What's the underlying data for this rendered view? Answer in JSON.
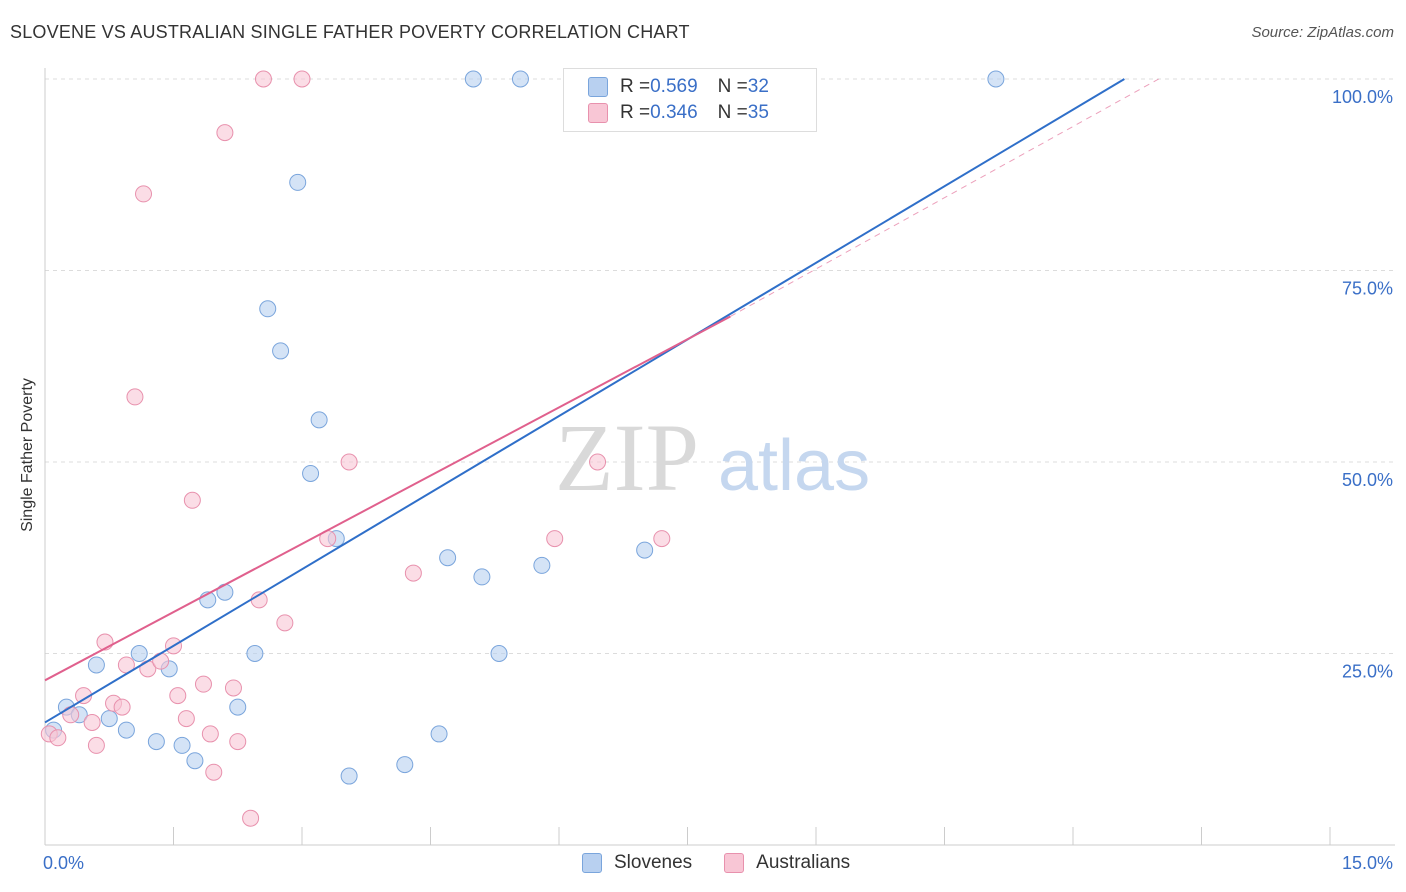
{
  "title": "SLOVENE VS AUSTRALIAN SINGLE FATHER POVERTY CORRELATION CHART",
  "source": "Source: ZipAtlas.com",
  "watermark": {
    "zip": "ZIP",
    "atlas": "atlas"
  },
  "colors": {
    "blue_fill": "#b8d0f0",
    "blue_stroke": "#7aa5dc",
    "blue_line": "#2f6fc9",
    "pink_fill": "#f8c6d5",
    "pink_stroke": "#e891ad",
    "pink_line": "#e0608d",
    "tick_label": "#3a6fc7"
  },
  "legend": {
    "rows": [
      {
        "r_label": "R = ",
        "r_value": "0.569",
        "n_label": "N = ",
        "n_value": "32"
      },
      {
        "r_label": "R = ",
        "r_value": "0.346",
        "n_label": "N = ",
        "n_value": "35"
      }
    ]
  },
  "bottom_legend": [
    "Slovenes",
    "Australians"
  ],
  "chart_data": {
    "type": "scatter",
    "title": "SLOVENE VS AUSTRALIAN SINGLE FATHER POVERTY CORRELATION CHART",
    "xlabel": "",
    "ylabel": "Single Father Poverty",
    "xlim": [
      0,
      15
    ],
    "ylim": [
      0,
      100
    ],
    "x_tick_labels": [
      "0.0%",
      "15.0%"
    ],
    "y_ticks": [
      25,
      50,
      75,
      100
    ],
    "y_tick_labels": [
      "25.0%",
      "50.0%",
      "75.0%",
      "100.0%"
    ],
    "series": [
      {
        "name": "Slovenes",
        "r": 0.569,
        "n": 32,
        "trend": {
          "x0": 0,
          "y0": 16,
          "x1": 12.6,
          "y1": 100
        },
        "points": [
          [
            0.1,
            15
          ],
          [
            0.25,
            18
          ],
          [
            0.4,
            17
          ],
          [
            0.6,
            23.5
          ],
          [
            0.75,
            16.5
          ],
          [
            0.95,
            15
          ],
          [
            1.1,
            25
          ],
          [
            1.3,
            13.5
          ],
          [
            1.45,
            23
          ],
          [
            1.6,
            13
          ],
          [
            1.75,
            11
          ],
          [
            1.9,
            32
          ],
          [
            2.1,
            33
          ],
          [
            2.25,
            18
          ],
          [
            2.45,
            25
          ],
          [
            2.6,
            70
          ],
          [
            2.75,
            64.5
          ],
          [
            2.95,
            86.5
          ],
          [
            3.1,
            48.5
          ],
          [
            3.2,
            55.5
          ],
          [
            3.4,
            40
          ],
          [
            3.55,
            9
          ],
          [
            4.2,
            10.5
          ],
          [
            4.6,
            14.5
          ],
          [
            4.7,
            37.5
          ],
          [
            5.0,
            100
          ],
          [
            5.1,
            35
          ],
          [
            5.3,
            25
          ],
          [
            5.55,
            100
          ],
          [
            5.8,
            36.5
          ],
          [
            7.0,
            38.5
          ],
          [
            11.1,
            100
          ]
        ]
      },
      {
        "name": "Australians",
        "r": 0.346,
        "n": 35,
        "trend": {
          "x0": 0,
          "y0": 21.5,
          "x1": 8.0,
          "y1": 69,
          "dash_x1": 13.0,
          "dash_y1": 100
        },
        "points": [
          [
            0.05,
            14.5
          ],
          [
            0.15,
            14
          ],
          [
            0.3,
            17
          ],
          [
            0.45,
            19.5
          ],
          [
            0.55,
            16
          ],
          [
            0.6,
            13
          ],
          [
            0.7,
            26.5
          ],
          [
            0.8,
            18.5
          ],
          [
            0.9,
            18
          ],
          [
            0.95,
            23.5
          ],
          [
            1.05,
            58.5
          ],
          [
            1.15,
            85
          ],
          [
            1.2,
            23
          ],
          [
            1.35,
            24
          ],
          [
            1.5,
            26
          ],
          [
            1.55,
            19.5
          ],
          [
            1.65,
            16.5
          ],
          [
            1.72,
            45
          ],
          [
            1.85,
            21
          ],
          [
            1.93,
            14.5
          ],
          [
            1.97,
            9.5
          ],
          [
            2.1,
            93
          ],
          [
            2.2,
            20.5
          ],
          [
            2.25,
            13.5
          ],
          [
            2.4,
            3.5
          ],
          [
            2.5,
            32
          ],
          [
            2.55,
            100
          ],
          [
            2.8,
            29
          ],
          [
            3.0,
            100
          ],
          [
            3.3,
            40
          ],
          [
            3.55,
            50
          ],
          [
            4.3,
            35.5
          ],
          [
            5.95,
            40
          ],
          [
            6.45,
            50
          ],
          [
            7.2,
            40
          ]
        ]
      }
    ]
  }
}
